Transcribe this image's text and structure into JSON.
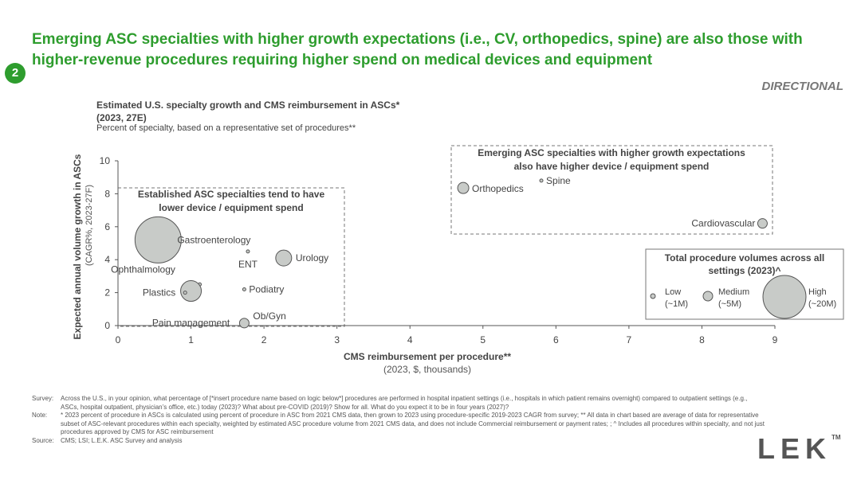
{
  "headline": "Emerging ASC specialties with higher growth expectations (i.e., CV, orthopedics, spine) are also those with higher-revenue procedures requiring higher spend on medical devices and equipment",
  "badge": "2",
  "directional": "DIRECTIONAL",
  "chart_data": {
    "type": "scatter",
    "title_line1": "Estimated U.S. specialty growth and CMS reimbursement in ASCs*",
    "title_line2": "(2023, 27E)",
    "subtitle": "Percent of specialty, based on a representative set of procedures**",
    "xlabel": "CMS reimbursement per procedure**",
    "xlabel_sub": "(2023, $, thousands)",
    "ylabel": "Expected annual volume growth in ASCs",
    "ylabel_sub": "(CAGR%, 2023-27F)",
    "xlim": [
      0,
      9
    ],
    "ylim": [
      0,
      10
    ],
    "xticks": [
      0,
      1,
      2,
      3,
      4,
      5,
      6,
      7,
      8,
      9
    ],
    "yticks": [
      0,
      2,
      4,
      6,
      8,
      10
    ],
    "grid": false,
    "points": [
      {
        "name": "Gastroenterology",
        "x": 0.55,
        "y": 5.2,
        "volume": "High"
      },
      {
        "name": "ENT",
        "x": 1.78,
        "y": 4.5,
        "volume": "Very low"
      },
      {
        "name": "Urology",
        "x": 2.27,
        "y": 4.1,
        "volume": "Medium"
      },
      {
        "name": "Ophthalmology",
        "x": 1.12,
        "y": 2.5,
        "volume": "Very low"
      },
      {
        "name": "Pain management",
        "x": 1.0,
        "y": 2.1,
        "volume": "Medium-high"
      },
      {
        "name": "Plastics",
        "x": 0.92,
        "y": 2.0,
        "volume": "Very low"
      },
      {
        "name": "Podiatry",
        "x": 1.73,
        "y": 2.2,
        "volume": "Very low"
      },
      {
        "name": "Ob/Gyn",
        "x": 1.73,
        "y": 0.15,
        "volume": "Low"
      },
      {
        "name": "Orthopedics",
        "x": 4.73,
        "y": 8.35,
        "volume": "Low-medium"
      },
      {
        "name": "Spine",
        "x": 5.8,
        "y": 8.8,
        "volume": "Very low"
      },
      {
        "name": "Cardiovascular",
        "x": 8.83,
        "y": 6.2,
        "volume": "Low"
      }
    ],
    "annotations": {
      "established": "Established ASC specialties tend to have lower device / equipment spend",
      "emerging": "Emerging ASC specialties with higher growth expectations also have higher device / equipment spend"
    },
    "legend": {
      "title": "Total procedure volumes across all settings (2023)^",
      "placement": "right",
      "items": [
        {
          "label": "Low",
          "sub": "(~1M)"
        },
        {
          "label": "Medium",
          "sub": "(~5M)"
        },
        {
          "label": "High",
          "sub": "(~20M)"
        }
      ]
    }
  },
  "footnotes": [
    {
      "label": "Survey:",
      "text": "Across the U.S., in your opinion, what percentage of [*insert procedure name based on logic below*] procedures are performed in hospital inpatient settings (i.e., hospitals in which patient remains overnight) compared to outpatient settings (e.g., ASCs, hospital outpatient, physician’s office, etc.) today (2023)? What about pre-COVID (2019)? Show for all. What do you expect it to be in four years (2027)?"
    },
    {
      "label": "Note:",
      "text": "* 2023 percent of procedure in ASCs is calculated using percent of procedure in ASC from 2021 CMS data, then grown to 2023 using procedure-specific 2019-2023 CAGR from survey; ** All data in chart based are average of data for representative subset of ASC-relevant procedures within each specialty, weighted by estimated ASC procedure volume from 2021 CMS data, and does not include Commercial reimbursement or payment rates; ; ^ Includes all procedures within specialty, and not just procedures approved by CMS for ASC reimbursement"
    },
    {
      "label": "Source:",
      "text": "CMS; LSI; L.E.K. ASC Survey and analysis"
    }
  ],
  "logo": {
    "text": "LEK",
    "tm": "TM"
  },
  "colors": {
    "accent": "#2e9d2e",
    "bubble_fill": "#c8cbc8",
    "bubble_stroke": "#555555"
  }
}
